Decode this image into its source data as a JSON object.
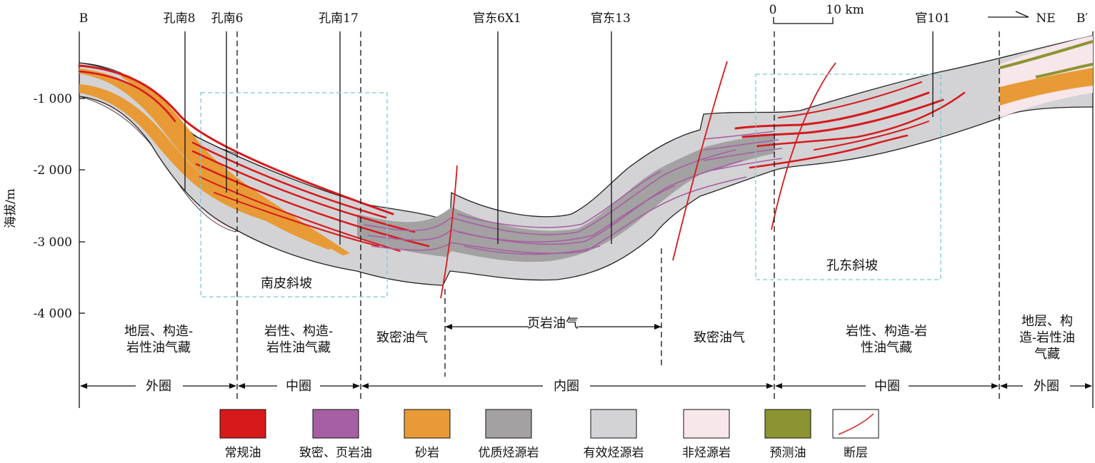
{
  "section": {
    "end_left": "B",
    "end_right": "B′",
    "direction": "NE",
    "scale_zero": "0",
    "scale_label": "10 km"
  },
  "axis": {
    "ylabel": "海拔/m",
    "ticks": [
      "-1 000",
      "-2 000",
      "-3 000",
      "-4 000"
    ]
  },
  "wells": [
    "孔南8",
    "孔南6",
    "孔南17",
    "官东6X1",
    "官东13",
    "官101"
  ],
  "boxes": {
    "south": "南皮斜坡",
    "east": "孔东斜坡"
  },
  "plays": {
    "p1": "地层、构造-岩性油气藏",
    "p2": "岩性、构造-岩性油气藏",
    "p3": "致密油气",
    "p4": "页岩油气",
    "p5": "致密油气",
    "p6": "岩性、构造-岩性油气藏",
    "p7": "地层、构造-岩性油气藏"
  },
  "belts": {
    "b1": "外圈",
    "b2": "中圈",
    "b3": "内圈",
    "b4": "中圈",
    "b5": "外圈"
  },
  "legend": [
    {
      "label": "常规油",
      "color": "#d7191c"
    },
    {
      "label": "致密、页岩油",
      "color": "#a65fa3"
    },
    {
      "label": "砂岩",
      "color": "#e89a36"
    },
    {
      "label": "优质烃源岩",
      "color": "#a3a1a2"
    },
    {
      "label": "有效烃源岩",
      "color": "#d3d3d5"
    },
    {
      "label": "非烃源岩",
      "color": "#f7e6ea"
    },
    {
      "label": "预测油",
      "color": "#8c9431"
    },
    {
      "label": "断层",
      "color": "#d7191c"
    }
  ]
}
